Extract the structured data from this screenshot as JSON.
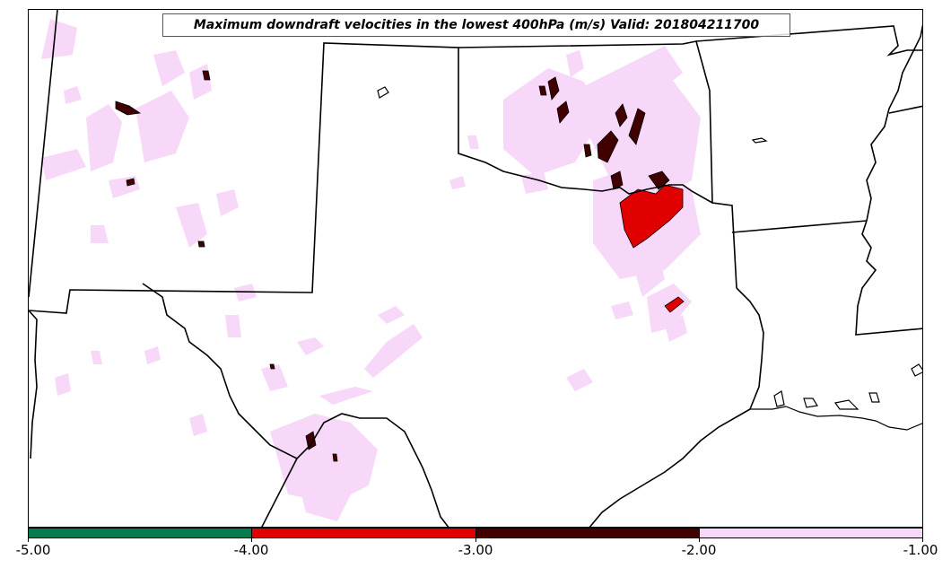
{
  "title": "Maximum downdraft velocities in the lowest 400hPa (m/s) Valid: 201804211700",
  "colorbar": {
    "segments": [
      {
        "range": "-5.00 to -4.00",
        "color": "#067d4f"
      },
      {
        "range": "-4.00 to -3.00",
        "color": "#e00000"
      },
      {
        "range": "-3.00 to -2.00",
        "color": "#400000"
      },
      {
        "range": "-2.00 to -1.00",
        "color": "#f8d8f8"
      }
    ],
    "ticks": [
      "-5.00",
      "-4.00",
      "-3.00",
      "-2.00",
      "-1.00"
    ]
  },
  "field_colors": {
    "light": "#f8d8f8",
    "dark": "#400000",
    "red": "#e00000",
    "boundary": "#000000"
  }
}
